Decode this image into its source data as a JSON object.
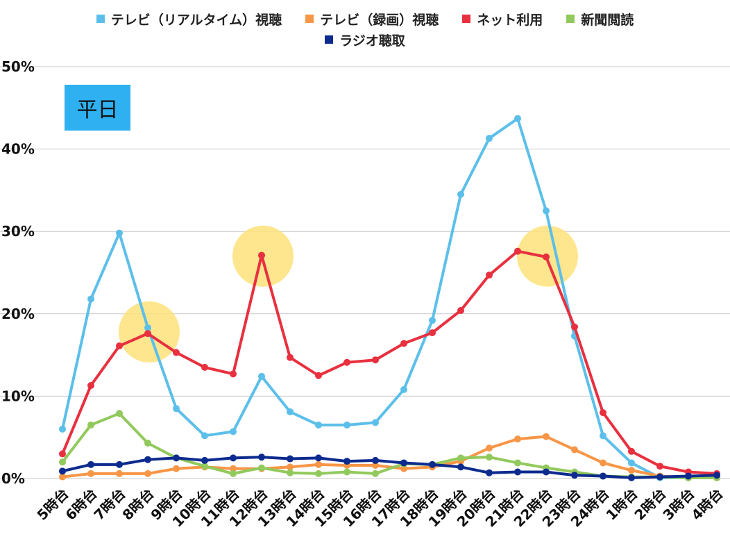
{
  "chart_data": {
    "type": "line",
    "panel_label": "平日",
    "categories": [
      "5時台",
      "6時台",
      "7時台",
      "8時台",
      "9時台",
      "10時台",
      "11時台",
      "12時台",
      "13時台",
      "14時台",
      "15時台",
      "16時台",
      "17時台",
      "18時台",
      "19時台",
      "20時台",
      "21時台",
      "22時台",
      "23時台",
      "24時台",
      "1時台",
      "2時台",
      "3時台",
      "4時台"
    ],
    "ylim": [
      0,
      50
    ],
    "yticks": [
      "0%",
      "10%",
      "20%",
      "30%",
      "40%",
      "50%"
    ],
    "grid": true,
    "legend_position": "top",
    "series": [
      {
        "name": "テレビ（リアルタイム）視聴",
        "color": "#5cbfea",
        "values": [
          6.0,
          21.8,
          29.8,
          18.3,
          8.5,
          5.2,
          5.7,
          12.4,
          8.1,
          6.5,
          6.5,
          6.8,
          10.8,
          19.2,
          34.5,
          41.3,
          43.7,
          32.5,
          17.3,
          5.2,
          1.9,
          0.1,
          0.1,
          0.2
        ]
      },
      {
        "name": "テレビ（録画）視聴",
        "color": "#f79646",
        "values": [
          0.2,
          0.6,
          0.6,
          0.6,
          1.2,
          1.4,
          1.2,
          1.2,
          1.4,
          1.7,
          1.6,
          1.6,
          1.2,
          1.4,
          2.1,
          3.7,
          4.8,
          5.1,
          3.5,
          1.9,
          1.0,
          0.3,
          0.1,
          0.1
        ]
      },
      {
        "name": "ネット利用",
        "color": "#e8303f",
        "values": [
          3.0,
          11.3,
          16.1,
          17.6,
          15.3,
          13.5,
          12.7,
          27.1,
          14.7,
          12.5,
          14.1,
          14.4,
          16.4,
          17.7,
          20.4,
          24.7,
          27.6,
          26.9,
          18.4,
          8.0,
          3.3,
          1.5,
          0.8,
          0.6
        ]
      },
      {
        "name": "新聞閲読",
        "color": "#92c95c",
        "values": [
          2.0,
          6.5,
          7.9,
          4.3,
          2.5,
          1.5,
          0.6,
          1.3,
          0.7,
          0.6,
          0.8,
          0.6,
          1.8,
          1.7,
          2.5,
          2.6,
          1.9,
          1.3,
          0.8,
          0.3,
          0.2,
          0.2,
          0.1,
          0.1
        ]
      },
      {
        "name": "ラジオ聴取",
        "color": "#0d2b8e",
        "values": [
          0.9,
          1.7,
          1.7,
          2.3,
          2.5,
          2.2,
          2.5,
          2.6,
          2.4,
          2.5,
          2.1,
          2.2,
          1.9,
          1.7,
          1.4,
          0.7,
          0.8,
          0.8,
          0.4,
          0.3,
          0.1,
          0.2,
          0.3,
          0.4
        ]
      }
    ],
    "highlights": [
      {
        "category": "8時台",
        "value": 17.8
      },
      {
        "category": "12時台",
        "value": 27.0
      },
      {
        "category": "22時台",
        "value": 27.0
      }
    ],
    "highlight_color": "#fde27a"
  }
}
